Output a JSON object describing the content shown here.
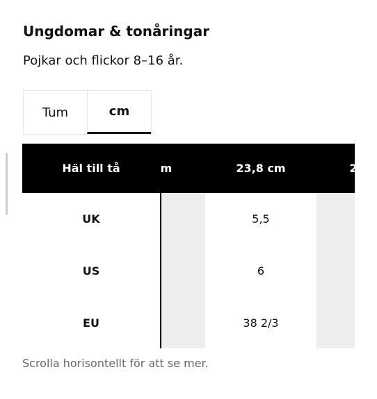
{
  "header": {
    "title": "Ungdomar & tonåringar",
    "subtitle": "Pojkar och flickor 8–16 år."
  },
  "tabs": [
    "Tum",
    "cm"
  ],
  "table": {
    "columns": [
      "Häl till tå",
      "m",
      "23,8 cm",
      "2"
    ],
    "rows": [
      [
        "UK",
        "5,5"
      ],
      [
        "US",
        "6"
      ],
      [
        "EU",
        "38 2/3"
      ]
    ]
  },
  "note": "Scrolla horisontellt för att se mer."
}
